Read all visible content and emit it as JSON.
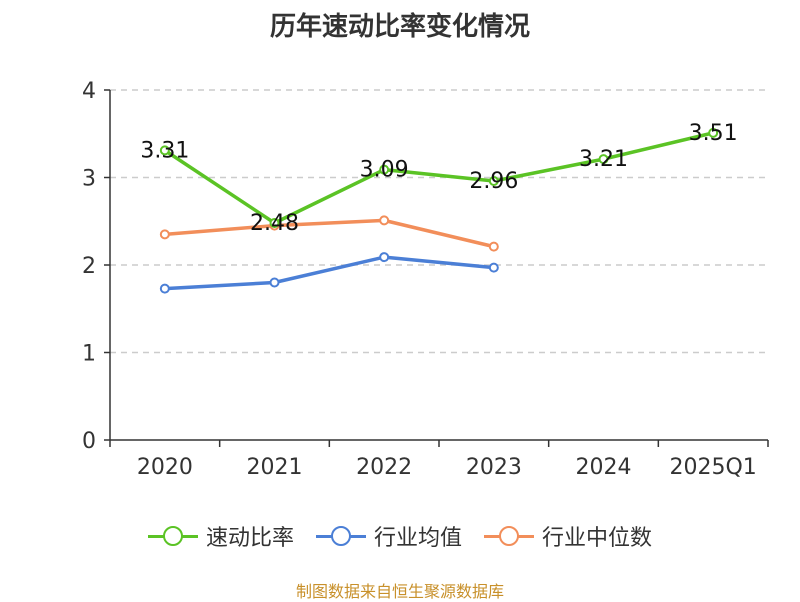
{
  "chart_data": {
    "type": "line",
    "title": "历年速动比率变化情况",
    "categories": [
      "2020",
      "2021",
      "2022",
      "2023",
      "2024",
      "2025Q1"
    ],
    "y_ticks": [
      "0",
      "1",
      "2",
      "3",
      "4"
    ],
    "ylim": [
      0,
      4
    ],
    "grid": true,
    "legend_position": "bottom",
    "series": [
      {
        "name": "速动比率",
        "color": "#5bc325",
        "values": [
          3.31,
          2.48,
          3.09,
          2.96,
          3.21,
          3.51
        ],
        "labels": [
          "3.31",
          "2.48",
          "3.09",
          "2.96",
          "3.21",
          "3.51"
        ],
        "show_labels": true
      },
      {
        "name": "行业均值",
        "color": "#4b7fd6",
        "values": [
          1.73,
          1.8,
          2.09,
          1.97,
          null,
          null
        ],
        "show_labels": false
      },
      {
        "name": "行业中位数",
        "color": "#f28e5a",
        "values": [
          2.35,
          2.45,
          2.51,
          2.21,
          null,
          null
        ],
        "show_labels": false
      }
    ]
  },
  "footer": {
    "source": "制图数据来自恒生聚源数据库"
  }
}
